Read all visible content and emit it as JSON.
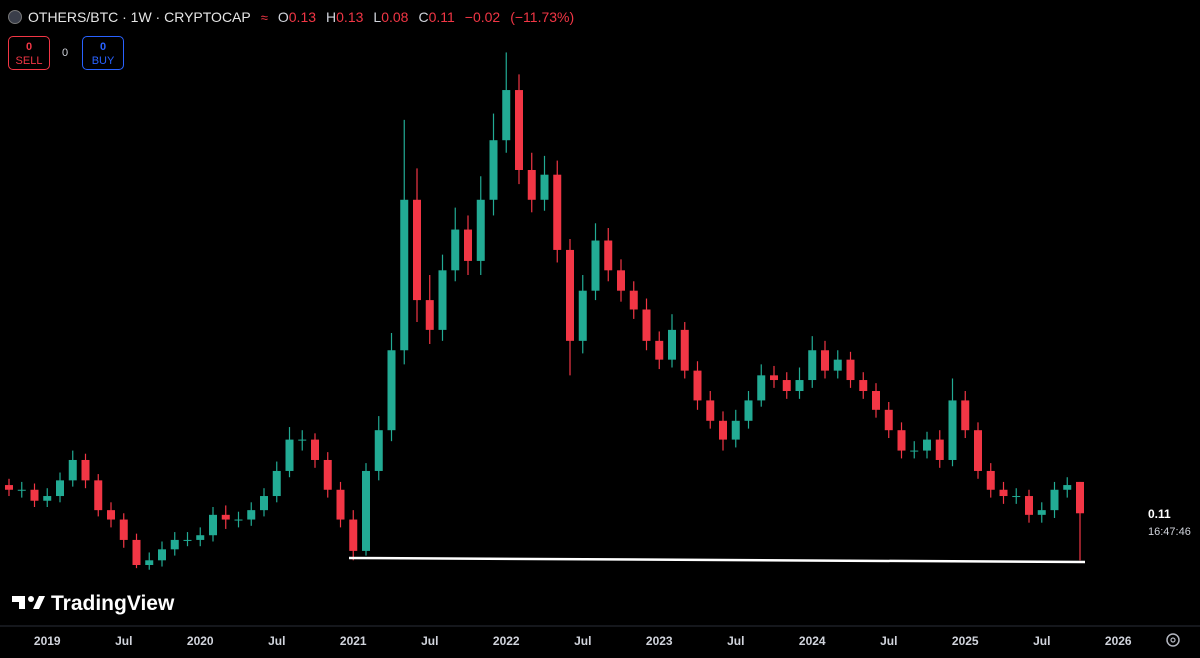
{
  "header": {
    "symbol": "OTHERS/BTC · 1W · CRYPTOCAP",
    "ohlc_letters": [
      "O",
      "H",
      "L",
      "C"
    ],
    "change": "−0.02",
    "change_pct": "(−11.73%)"
  },
  "trade": {
    "sell_price": "0",
    "sell": "SELL",
    "spread": "0",
    "buy_price": "0",
    "buy": "BUY"
  },
  "brand": "TradingView",
  "countdown": "16:47:46",
  "chart_data": {
    "type": "candlestick",
    "categories": [
      null,
      null,
      null,
      "2019",
      null,
      null,
      null,
      null,
      null,
      "Jul",
      null,
      null,
      null,
      null,
      null,
      "2020",
      null,
      null,
      null,
      null,
      null,
      "Jul",
      null,
      null,
      null,
      null,
      null,
      "2021",
      null,
      null,
      null,
      null,
      null,
      "Jul",
      null,
      null,
      null,
      null,
      null,
      "2022",
      null,
      null,
      null,
      null,
      null,
      "Jul",
      null,
      null,
      null,
      null,
      null,
      "2023",
      null,
      null,
      null,
      null,
      null,
      "Jul",
      null,
      null,
      null,
      null,
      null,
      "2024",
      null,
      null,
      null,
      null,
      null,
      "Jul",
      null,
      null,
      null,
      null,
      null,
      "2025",
      null,
      null,
      null,
      null,
      null,
      "Jul",
      null,
      null,
      null,
      null,
      null,
      "2026"
    ],
    "open": [
      0.128,
      0.125,
      0.125,
      0.118,
      0.121,
      0.131,
      0.144,
      0.131,
      0.112,
      0.106,
      0.093,
      0.077,
      0.08,
      0.087,
      0.093,
      0.093,
      0.096,
      0.109,
      0.106,
      0.106,
      0.112,
      0.121,
      0.137,
      0.157,
      0.157,
      0.144,
      0.125,
      0.106,
      0.086,
      0.137,
      0.163,
      0.214,
      0.31,
      0.246,
      0.227,
      0.265,
      0.291,
      0.271,
      0.31,
      0.348,
      0.38,
      0.329,
      0.31,
      0.326,
      0.278,
      0.22,
      0.252,
      0.284,
      0.265,
      0.252,
      0.24,
      0.22,
      0.208,
      0.227,
      0.201,
      0.182,
      0.169,
      0.157,
      0.169,
      0.182,
      0.198,
      0.195,
      0.188,
      0.195,
      0.214,
      0.201,
      0.208,
      0.195,
      0.188,
      0.176,
      0.163,
      0.15,
      0.15,
      0.157,
      0.144,
      0.182,
      0.163,
      0.137,
      0.125,
      0.121,
      0.121,
      0.109,
      0.112,
      0.125,
      0.13,
      null,
      null,
      null
    ],
    "high": [
      0.132,
      0.13,
      0.129,
      0.126,
      0.136,
      0.15,
      0.148,
      0.135,
      0.117,
      0.11,
      0.097,
      0.085,
      0.092,
      0.098,
      0.098,
      0.101,
      0.114,
      0.115,
      0.111,
      0.117,
      0.126,
      0.143,
      0.165,
      0.163,
      0.161,
      0.149,
      0.13,
      0.112,
      0.142,
      0.172,
      0.225,
      0.361,
      0.33,
      0.262,
      0.275,
      0.305,
      0.3,
      0.325,
      0.365,
      0.404,
      0.39,
      0.34,
      0.338,
      0.335,
      0.285,
      0.262,
      0.295,
      0.292,
      0.272,
      0.258,
      0.247,
      0.226,
      0.237,
      0.232,
      0.207,
      0.188,
      0.175,
      0.176,
      0.188,
      0.205,
      0.204,
      0.2,
      0.203,
      0.223,
      0.22,
      0.214,
      0.213,
      0.2,
      0.193,
      0.181,
      0.168,
      0.156,
      0.162,
      0.163,
      0.196,
      0.188,
      0.168,
      0.142,
      0.13,
      0.126,
      0.125,
      0.117,
      0.13,
      0.133,
      0.13,
      null,
      null,
      null
    ],
    "low": [
      0.121,
      0.12,
      0.114,
      0.114,
      0.117,
      0.127,
      0.126,
      0.108,
      0.101,
      0.088,
      0.075,
      0.074,
      0.076,
      0.083,
      0.089,
      0.089,
      0.092,
      0.1,
      0.101,
      0.102,
      0.108,
      0.117,
      0.133,
      0.15,
      0.139,
      0.12,
      0.101,
      0.08,
      0.083,
      0.131,
      0.156,
      0.205,
      0.232,
      0.218,
      0.22,
      0.258,
      0.262,
      0.262,
      0.3,
      0.34,
      0.32,
      0.302,
      0.303,
      0.27,
      0.198,
      0.212,
      0.246,
      0.258,
      0.245,
      0.234,
      0.214,
      0.202,
      0.203,
      0.196,
      0.176,
      0.164,
      0.15,
      0.152,
      0.164,
      0.178,
      0.19,
      0.183,
      0.183,
      0.19,
      0.196,
      0.196,
      0.19,
      0.183,
      0.171,
      0.158,
      0.145,
      0.145,
      0.145,
      0.139,
      0.14,
      0.158,
      0.132,
      0.12,
      0.116,
      0.116,
      0.104,
      0.104,
      0.107,
      0.12,
      0.08,
      null,
      null,
      null
    ],
    "close": [
      0.125,
      0.125,
      0.118,
      0.121,
      0.131,
      0.144,
      0.131,
      0.112,
      0.106,
      0.093,
      0.077,
      0.08,
      0.087,
      0.093,
      0.093,
      0.096,
      0.109,
      0.106,
      0.106,
      0.112,
      0.121,
      0.137,
      0.157,
      0.157,
      0.144,
      0.125,
      0.106,
      0.086,
      0.137,
      0.163,
      0.214,
      0.31,
      0.246,
      0.227,
      0.265,
      0.291,
      0.271,
      0.31,
      0.348,
      0.38,
      0.329,
      0.31,
      0.326,
      0.278,
      0.22,
      0.252,
      0.284,
      0.265,
      0.252,
      0.24,
      0.22,
      0.208,
      0.227,
      0.201,
      0.182,
      0.169,
      0.157,
      0.169,
      0.182,
      0.198,
      0.195,
      0.188,
      0.195,
      0.214,
      0.201,
      0.208,
      0.195,
      0.188,
      0.176,
      0.163,
      0.15,
      0.15,
      0.157,
      0.144,
      0.182,
      0.163,
      0.137,
      0.125,
      0.121,
      0.121,
      0.109,
      0.112,
      0.125,
      0.128,
      0.11,
      null,
      null,
      null
    ],
    "up_color": "#22ab94",
    "down_color": "#f23645",
    "ylim": [
      0.04,
      0.44
    ]
  }
}
